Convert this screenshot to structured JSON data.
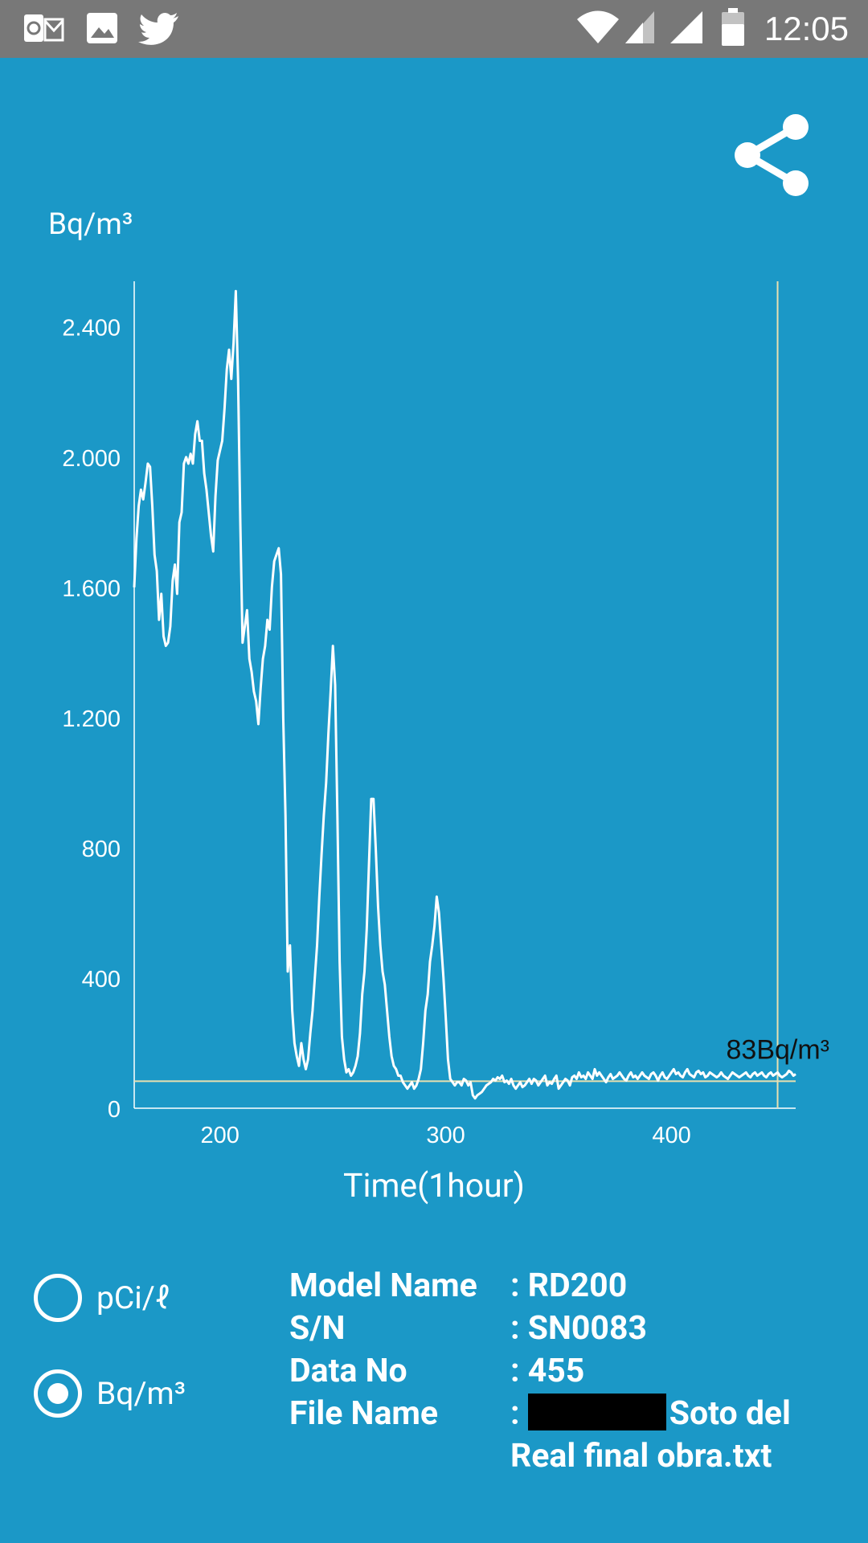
{
  "status_bar": {
    "time": "12:05",
    "left_icons": [
      "outlook-icon",
      "image-icon",
      "twitter-icon"
    ],
    "right_icons": [
      "wifi-icon",
      "signal-icon",
      "signal-icon",
      "battery-icon"
    ]
  },
  "chart_header": {
    "unit": "Bq/m³"
  },
  "chart_data": {
    "type": "line",
    "title": "",
    "ylabel": "Bq/m³",
    "xlabel": "Time(1hour)",
    "xlim": [
      162,
      455
    ],
    "ylim": [
      0,
      2540
    ],
    "x_ticks": [
      200,
      300,
      400
    ],
    "y_ticks": [
      0,
      400,
      800,
      1200,
      1600,
      2000,
      2400
    ],
    "y_tick_labels": [
      "0",
      "400",
      "800",
      "1.200",
      "1.600",
      "2.000",
      "2.400"
    ],
    "threshold_line": {
      "value": 83,
      "label": "83Bq/m³"
    },
    "cursor_x": 447,
    "grid": false,
    "series": [
      {
        "points": [
          [
            162,
            1600
          ],
          [
            163,
            1750
          ],
          [
            164,
            1850
          ],
          [
            165,
            1900
          ],
          [
            166,
            1870
          ],
          [
            167,
            1920
          ],
          [
            168,
            1980
          ],
          [
            169,
            1970
          ],
          [
            170,
            1850
          ],
          [
            171,
            1700
          ],
          [
            172,
            1650
          ],
          [
            173,
            1500
          ],
          [
            174,
            1580
          ],
          [
            175,
            1450
          ],
          [
            176,
            1420
          ],
          [
            177,
            1430
          ],
          [
            178,
            1480
          ],
          [
            179,
            1620
          ],
          [
            180,
            1670
          ],
          [
            181,
            1580
          ],
          [
            182,
            1800
          ],
          [
            183,
            1830
          ],
          [
            184,
            1980
          ],
          [
            185,
            2000
          ],
          [
            186,
            1980
          ],
          [
            187,
            2010
          ],
          [
            188,
            1980
          ],
          [
            189,
            2070
          ],
          [
            190,
            2110
          ],
          [
            191,
            2050
          ],
          [
            192,
            2050
          ],
          [
            193,
            1950
          ],
          [
            194,
            1900
          ],
          [
            195,
            1830
          ],
          [
            196,
            1760
          ],
          [
            197,
            1710
          ],
          [
            198,
            1880
          ],
          [
            199,
            1990
          ],
          [
            200,
            2020
          ],
          [
            201,
            2050
          ],
          [
            202,
            2150
          ],
          [
            203,
            2270
          ],
          [
            204,
            2330
          ],
          [
            205,
            2240
          ],
          [
            206,
            2350
          ],
          [
            207,
            2510
          ],
          [
            208,
            2240
          ],
          [
            209,
            1800
          ],
          [
            210,
            1430
          ],
          [
            211,
            1480
          ],
          [
            212,
            1530
          ],
          [
            213,
            1380
          ],
          [
            214,
            1340
          ],
          [
            215,
            1280
          ],
          [
            216,
            1250
          ],
          [
            217,
            1180
          ],
          [
            218,
            1290
          ],
          [
            219,
            1380
          ],
          [
            220,
            1420
          ],
          [
            221,
            1500
          ],
          [
            222,
            1470
          ],
          [
            223,
            1600
          ],
          [
            224,
            1680
          ],
          [
            225,
            1700
          ],
          [
            226,
            1720
          ],
          [
            227,
            1640
          ],
          [
            228,
            1200
          ],
          [
            229,
            900
          ],
          [
            230,
            420
          ],
          [
            231,
            500
          ],
          [
            232,
            300
          ],
          [
            233,
            200
          ],
          [
            234,
            160
          ],
          [
            235,
            130
          ],
          [
            236,
            200
          ],
          [
            237,
            150
          ],
          [
            238,
            120
          ],
          [
            239,
            150
          ],
          [
            240,
            230
          ],
          [
            241,
            300
          ],
          [
            242,
            400
          ],
          [
            243,
            500
          ],
          [
            244,
            650
          ],
          [
            245,
            780
          ],
          [
            246,
            900
          ],
          [
            247,
            1000
          ],
          [
            248,
            1150
          ],
          [
            249,
            1280
          ],
          [
            250,
            1420
          ],
          [
            251,
            1300
          ],
          [
            252,
            900
          ],
          [
            253,
            450
          ],
          [
            254,
            220
          ],
          [
            255,
            150
          ],
          [
            256,
            110
          ],
          [
            257,
            120
          ],
          [
            258,
            100
          ],
          [
            259,
            110
          ],
          [
            260,
            130
          ],
          [
            261,
            160
          ],
          [
            262,
            230
          ],
          [
            263,
            350
          ],
          [
            264,
            420
          ],
          [
            265,
            550
          ],
          [
            266,
            750
          ],
          [
            267,
            950
          ],
          [
            268,
            950
          ],
          [
            269,
            800
          ],
          [
            270,
            620
          ],
          [
            271,
            500
          ],
          [
            272,
            420
          ],
          [
            273,
            380
          ],
          [
            274,
            300
          ],
          [
            275,
            220
          ],
          [
            276,
            160
          ],
          [
            277,
            130
          ],
          [
            278,
            120
          ],
          [
            279,
            100
          ],
          [
            280,
            100
          ],
          [
            281,
            80
          ],
          [
            282,
            70
          ],
          [
            283,
            60
          ],
          [
            284,
            70
          ],
          [
            285,
            80
          ],
          [
            286,
            60
          ],
          [
            287,
            70
          ],
          [
            288,
            90
          ],
          [
            289,
            120
          ],
          [
            290,
            200
          ],
          [
            291,
            300
          ],
          [
            292,
            350
          ],
          [
            293,
            450
          ],
          [
            294,
            500
          ],
          [
            295,
            560
          ],
          [
            296,
            650
          ],
          [
            297,
            600
          ],
          [
            298,
            500
          ],
          [
            299,
            400
          ],
          [
            300,
            280
          ],
          [
            301,
            150
          ],
          [
            302,
            90
          ],
          [
            303,
            80
          ],
          [
            304,
            70
          ],
          [
            305,
            80
          ],
          [
            306,
            80
          ],
          [
            307,
            70
          ],
          [
            308,
            90
          ],
          [
            309,
            85
          ],
          [
            310,
            70
          ],
          [
            311,
            80
          ],
          [
            312,
            40
          ],
          [
            313,
            30
          ],
          [
            314,
            40
          ],
          [
            315,
            45
          ],
          [
            316,
            50
          ],
          [
            317,
            60
          ],
          [
            318,
            70
          ],
          [
            319,
            75
          ],
          [
            320,
            80
          ],
          [
            321,
            90
          ],
          [
            322,
            85
          ],
          [
            323,
            95
          ],
          [
            324,
            90
          ],
          [
            325,
            100
          ],
          [
            326,
            80
          ],
          [
            327,
            85
          ],
          [
            328,
            75
          ],
          [
            329,
            90
          ],
          [
            330,
            70
          ],
          [
            331,
            60
          ],
          [
            332,
            70
          ],
          [
            333,
            80
          ],
          [
            334,
            65
          ],
          [
            335,
            70
          ],
          [
            336,
            80
          ],
          [
            337,
            90
          ],
          [
            338,
            75
          ],
          [
            339,
            90
          ],
          [
            340,
            85
          ],
          [
            341,
            70
          ],
          [
            342,
            80
          ],
          [
            343,
            90
          ],
          [
            344,
            100
          ],
          [
            345,
            70
          ],
          [
            346,
            80
          ],
          [
            347,
            75
          ],
          [
            348,
            90
          ],
          [
            349,
            100
          ],
          [
            350,
            60
          ],
          [
            351,
            70
          ],
          [
            352,
            80
          ],
          [
            353,
            90
          ],
          [
            354,
            85
          ],
          [
            355,
            70
          ],
          [
            356,
            95
          ],
          [
            357,
            100
          ],
          [
            358,
            90
          ],
          [
            359,
            110
          ],
          [
            360,
            95
          ],
          [
            361,
            100
          ],
          [
            362,
            90
          ],
          [
            363,
            110
          ],
          [
            364,
            100
          ],
          [
            365,
            90
          ],
          [
            366,
            120
          ],
          [
            367,
            100
          ],
          [
            368,
            110
          ],
          [
            369,
            100
          ],
          [
            370,
            90
          ],
          [
            371,
            80
          ],
          [
            372,
            95
          ],
          [
            373,
            105
          ],
          [
            374,
            90
          ],
          [
            375,
            95
          ],
          [
            376,
            100
          ],
          [
            377,
            110
          ],
          [
            378,
            100
          ],
          [
            379,
            90
          ],
          [
            380,
            85
          ],
          [
            381,
            100
          ],
          [
            382,
            110
          ],
          [
            383,
            95
          ],
          [
            384,
            100
          ],
          [
            385,
            90
          ],
          [
            386,
            100
          ],
          [
            387,
            110
          ],
          [
            388,
            100
          ],
          [
            389,
            95
          ],
          [
            390,
            90
          ],
          [
            391,
            105
          ],
          [
            392,
            110
          ],
          [
            393,
            100
          ],
          [
            394,
            85
          ],
          [
            395,
            100
          ],
          [
            396,
            110
          ],
          [
            397,
            95
          ],
          [
            398,
            90
          ],
          [
            399,
            100
          ],
          [
            400,
            110
          ],
          [
            401,
            120
          ],
          [
            402,
            105
          ],
          [
            403,
            110
          ],
          [
            404,
            100
          ],
          [
            405,
            95
          ],
          [
            406,
            110
          ],
          [
            407,
            120
          ],
          [
            408,
            105
          ],
          [
            409,
            100
          ],
          [
            410,
            95
          ],
          [
            411,
            110
          ],
          [
            412,
            115
          ],
          [
            413,
            105
          ],
          [
            414,
            110
          ],
          [
            415,
            95
          ],
          [
            416,
            100
          ],
          [
            417,
            110
          ],
          [
            418,
            105
          ],
          [
            419,
            100
          ],
          [
            420,
            95
          ],
          [
            421,
            100
          ],
          [
            422,
            110
          ],
          [
            423,
            100
          ],
          [
            424,
            95
          ],
          [
            425,
            90
          ],
          [
            426,
            100
          ],
          [
            427,
            110
          ],
          [
            428,
            105
          ],
          [
            429,
            100
          ],
          [
            430,
            95
          ],
          [
            431,
            100
          ],
          [
            432,
            105
          ],
          [
            433,
            110
          ],
          [
            434,
            100
          ],
          [
            435,
            95
          ],
          [
            436,
            105
          ],
          [
            437,
            110
          ],
          [
            438,
            100
          ],
          [
            439,
            105
          ],
          [
            440,
            110
          ],
          [
            441,
            100
          ],
          [
            442,
            95
          ],
          [
            443,
            105
          ],
          [
            444,
            110
          ],
          [
            445,
            100
          ],
          [
            446,
            105
          ],
          [
            447,
            110
          ],
          [
            448,
            100
          ],
          [
            449,
            95
          ],
          [
            450,
            100
          ],
          [
            451,
            105
          ],
          [
            452,
            115
          ],
          [
            453,
            110
          ],
          [
            454,
            100
          ],
          [
            455,
            105
          ]
        ]
      }
    ]
  },
  "unit_options": [
    {
      "label": "pCi/ℓ",
      "selected": false
    },
    {
      "label": "Bq/m³",
      "selected": true
    }
  ],
  "info": {
    "model_key": "Model Name",
    "model_val": ": RD200",
    "sn_key": "S/N",
    "sn_val": ": SN0083",
    "data_key": "Data No",
    "data_val": ": 455",
    "file_key": "File Name",
    "file_val_prefix": ":",
    "file_val_line1": "Soto del",
    "file_val_line2": "Real final obra.txt"
  }
}
